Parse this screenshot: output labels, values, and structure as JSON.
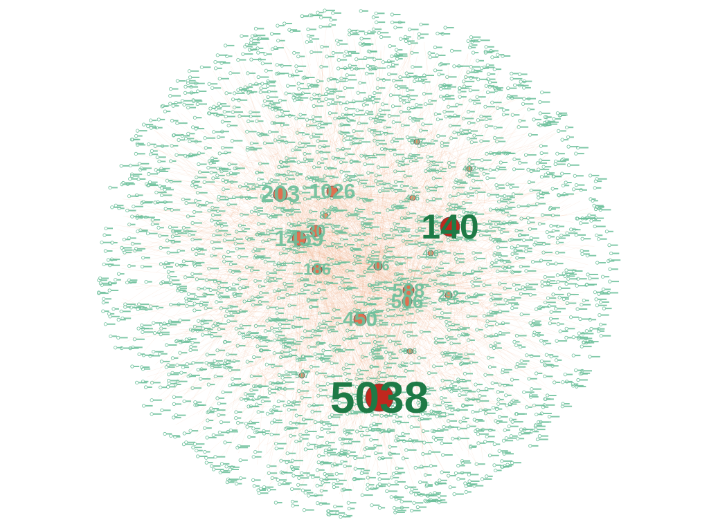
{
  "graph": {
    "layout": "force-directed",
    "node_style": {
      "fill": "#e8936a",
      "label_color": "#1e7a46",
      "small_label_color": "#6bbf9a"
    },
    "edge_style": {
      "color": "#f2b08a"
    },
    "hub_nodes": [
      {
        "id": "5038",
        "degree_rank": 1,
        "color": "#c0281e"
      },
      {
        "id": "140",
        "degree_rank": 2,
        "color": "#c0281e"
      },
      {
        "id": "203",
        "degree_rank": 3,
        "color": "#e07050"
      },
      {
        "id": "1026",
        "degree_rank": 4,
        "color": "#e07050"
      },
      {
        "id": "1459",
        "degree_rank": 5,
        "color": "#e07050"
      },
      {
        "id": "30",
        "degree_rank": 6,
        "color": "#e07050"
      },
      {
        "id": "588",
        "degree_rank": 7,
        "color": "#e07050"
      },
      {
        "id": "506",
        "degree_rank": 8,
        "color": "#e07050"
      },
      {
        "id": "450",
        "degree_rank": 9,
        "color": "#e07050"
      },
      {
        "id": "186",
        "degree_rank": 10,
        "color": "#e07050"
      },
      {
        "id": "206",
        "degree_rank": 11,
        "color": "#e07050"
      },
      {
        "id": "292",
        "degree_rank": 12,
        "color": "#e8936a"
      },
      {
        "id": "82",
        "degree_rank": 13,
        "color": "#e8936a"
      },
      {
        "id": "416",
        "degree_rank": 14,
        "color": "#e8936a"
      },
      {
        "id": "607",
        "degree_rank": 15,
        "color": "#e8936a"
      },
      {
        "id": "402",
        "degree_rank": 16,
        "color": "#e8936a"
      },
      {
        "id": "476",
        "degree_rank": 17,
        "color": "#e8936a"
      },
      {
        "id": "606",
        "degree_rank": 18,
        "color": "#e8936a"
      },
      {
        "id": "507",
        "degree_rank": 19,
        "color": "#e8936a"
      }
    ]
  }
}
